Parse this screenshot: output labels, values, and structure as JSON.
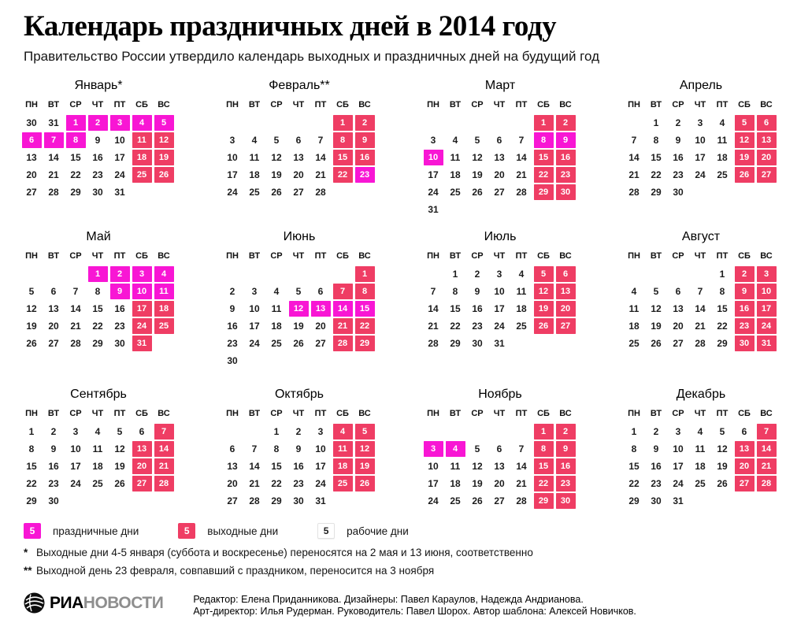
{
  "header": {
    "title": "Календарь праздничных дней в 2014 году",
    "subtitle": "Правительство России утвердило календарь выходных и праздничных дней на будущий год"
  },
  "calendar": {
    "year": "2014",
    "day_headers": [
      "ПН",
      "ВТ",
      "СР",
      "ЧТ",
      "ПТ",
      "СБ",
      "ВС"
    ],
    "cell_type_codes": {
      "H": "holiday",
      "W": "weekend"
    },
    "months": [
      {
        "id": "january",
        "name": "Январь*",
        "weeks": [
          [
            "30",
            "31",
            "1H",
            "2H",
            "3H",
            "4H",
            "5H"
          ],
          [
            "6H",
            "7H",
            "8H",
            "9",
            "10",
            "11W",
            "12W"
          ],
          [
            "13",
            "14",
            "15",
            "16",
            "17",
            "18W",
            "19W"
          ],
          [
            "20",
            "21",
            "22",
            "23",
            "24",
            "25W",
            "26W"
          ],
          [
            "27",
            "28",
            "29",
            "30",
            "31",
            "",
            ""
          ]
        ]
      },
      {
        "id": "february",
        "name": "Февраль**",
        "weeks": [
          [
            "",
            "",
            "",
            "",
            "",
            "1W",
            "2W"
          ],
          [
            "3",
            "4",
            "5",
            "6",
            "7",
            "8W",
            "9W"
          ],
          [
            "10",
            "11",
            "12",
            "13",
            "14",
            "15W",
            "16W"
          ],
          [
            "17",
            "18",
            "19",
            "20",
            "21",
            "22W",
            "23H"
          ],
          [
            "24",
            "25",
            "26",
            "27",
            "28",
            "",
            ""
          ]
        ]
      },
      {
        "id": "march",
        "name": "Март",
        "weeks": [
          [
            "",
            "",
            "",
            "",
            "",
            "1W",
            "2W"
          ],
          [
            "3",
            "4",
            "5",
            "6",
            "7",
            "8H",
            "9H"
          ],
          [
            "10H",
            "11",
            "12",
            "13",
            "14",
            "15W",
            "16W"
          ],
          [
            "17",
            "18",
            "19",
            "20",
            "21",
            "22W",
            "23W"
          ],
          [
            "24",
            "25",
            "26",
            "27",
            "28",
            "29W",
            "30W"
          ],
          [
            "31",
            "",
            "",
            "",
            "",
            "",
            ""
          ]
        ]
      },
      {
        "id": "april",
        "name": "Апрель",
        "weeks": [
          [
            "",
            "1",
            "2",
            "3",
            "4",
            "5W",
            "6W"
          ],
          [
            "7",
            "8",
            "9",
            "10",
            "11",
            "12W",
            "13W"
          ],
          [
            "14",
            "15",
            "16",
            "17",
            "18",
            "19W",
            "20W"
          ],
          [
            "21",
            "22",
            "23",
            "24",
            "25",
            "26W",
            "27W"
          ],
          [
            "28",
            "29",
            "30",
            "",
            "",
            "",
            ""
          ]
        ]
      },
      {
        "id": "may",
        "name": "Май",
        "weeks": [
          [
            "",
            "",
            "",
            "1H",
            "2H",
            "3H",
            "4H"
          ],
          [
            "5",
            "6",
            "7",
            "8",
            "9H",
            "10H",
            "11H"
          ],
          [
            "12",
            "13",
            "14",
            "15",
            "16",
            "17W",
            "18W"
          ],
          [
            "19",
            "20",
            "21",
            "22",
            "23",
            "24W",
            "25W"
          ],
          [
            "26",
            "27",
            "28",
            "29",
            "30",
            "31W",
            ""
          ]
        ]
      },
      {
        "id": "june",
        "name": "Июнь",
        "weeks": [
          [
            "",
            "",
            "",
            "",
            "",
            "",
            "1W"
          ],
          [
            "2",
            "3",
            "4",
            "5",
            "6",
            "7W",
            "8W"
          ],
          [
            "9",
            "10",
            "11",
            "12H",
            "13H",
            "14H",
            "15H"
          ],
          [
            "16",
            "17",
            "18",
            "19",
            "20",
            "21W",
            "22W"
          ],
          [
            "23",
            "24",
            "25",
            "26",
            "27",
            "28W",
            "29W"
          ],
          [
            "30",
            "",
            "",
            "",
            "",
            "",
            ""
          ]
        ]
      },
      {
        "id": "july",
        "name": "Июль",
        "weeks": [
          [
            "",
            "1",
            "2",
            "3",
            "4",
            "5W",
            "6W"
          ],
          [
            "7",
            "8",
            "9",
            "10",
            "11",
            "12W",
            "13W"
          ],
          [
            "14",
            "15",
            "16",
            "17",
            "18",
            "19W",
            "20W"
          ],
          [
            "21",
            "22",
            "23",
            "24",
            "25",
            "26W",
            "27W"
          ],
          [
            "28",
            "29",
            "30",
            "31",
            "",
            "",
            ""
          ]
        ]
      },
      {
        "id": "august",
        "name": "Август",
        "weeks": [
          [
            "",
            "",
            "",
            "",
            "1",
            "2W",
            "3W"
          ],
          [
            "4",
            "5",
            "6",
            "7",
            "8",
            "9W",
            "10W"
          ],
          [
            "11",
            "12",
            "13",
            "14",
            "15",
            "16W",
            "17W"
          ],
          [
            "18",
            "19",
            "20",
            "21",
            "22",
            "23W",
            "24W"
          ],
          [
            "25",
            "26",
            "27",
            "28",
            "29",
            "30W",
            "31W"
          ]
        ]
      },
      {
        "id": "september",
        "name": "Сентябрь",
        "weeks": [
          [
            "1",
            "2",
            "3",
            "4",
            "5",
            "6",
            "7W"
          ],
          [
            "8",
            "9",
            "10",
            "11",
            "12",
            "13W",
            "14W"
          ],
          [
            "15",
            "16",
            "17",
            "18",
            "19",
            "20W",
            "21W"
          ],
          [
            "22",
            "23",
            "24",
            "25",
            "26",
            "27W",
            "28W"
          ],
          [
            "29",
            "30",
            "",
            "",
            "",
            "",
            ""
          ]
        ]
      },
      {
        "id": "october",
        "name": "Октябрь",
        "weeks": [
          [
            "",
            "",
            "1",
            "2",
            "3",
            "4W",
            "5W"
          ],
          [
            "6",
            "7",
            "8",
            "9",
            "10",
            "11W",
            "12W"
          ],
          [
            "13",
            "14",
            "15",
            "16",
            "17",
            "18W",
            "19W"
          ],
          [
            "20",
            "21",
            "22",
            "23",
            "24",
            "25W",
            "26W"
          ],
          [
            "27",
            "28",
            "29",
            "30",
            "31",
            "",
            ""
          ]
        ]
      },
      {
        "id": "november",
        "name": "Ноябрь",
        "weeks": [
          [
            "",
            "",
            "",
            "",
            "",
            "1W",
            "2W"
          ],
          [
            "3H",
            "4H",
            "5",
            "6",
            "7",
            "8W",
            "9W"
          ],
          [
            "10",
            "11",
            "12",
            "13",
            "14",
            "15W",
            "16W"
          ],
          [
            "17",
            "18",
            "19",
            "20",
            "21",
            "22W",
            "23W"
          ],
          [
            "24",
            "25",
            "26",
            "27",
            "28",
            "29W",
            "30W"
          ]
        ]
      },
      {
        "id": "december",
        "name": "Декабрь",
        "weeks": [
          [
            "1",
            "2",
            "3",
            "4",
            "5",
            "6",
            "7W"
          ],
          [
            "8",
            "9",
            "10",
            "11",
            "12",
            "13W",
            "14W"
          ],
          [
            "15",
            "16",
            "17",
            "18",
            "19",
            "20W",
            "21W"
          ],
          [
            "22",
            "23",
            "24",
            "25",
            "26",
            "27W",
            "28W"
          ],
          [
            "29",
            "30",
            "31",
            "",
            "",
            "",
            ""
          ]
        ]
      }
    ]
  },
  "legend": {
    "items": [
      {
        "type": "holiday",
        "value": "5",
        "label": "праздничные дни"
      },
      {
        "type": "weekend",
        "value": "5",
        "label": "выходные дни"
      },
      {
        "type": "workday",
        "value": "5",
        "label": "рабочие дни"
      }
    ]
  },
  "footnotes": [
    {
      "marker": "*",
      "text": "Выходные дни 4-5 января (суббота и воскресенье) переносятся на 2 мая и 13 июня, соответственно"
    },
    {
      "marker": "**",
      "text": "Выходной день 23 февраля, совпавший с праздником, переносится на 3 ноября"
    }
  ],
  "footer": {
    "brand_black": "РИА",
    "brand_gray": "НОВОСТИ",
    "credits_line1": "Редактор: Елена Приданникова. Дизайнеры: Павел Караулов, Надежда Андрианова.",
    "credits_line2": "Арт-директор: Илья Рудерман. Руководитель: Павел Шорох. Автор шаблона: Алексей Новичков."
  },
  "colors": {
    "holiday": "#f816d4",
    "weekend": "#ef3d64",
    "text": "#1a1a1a",
    "logo_gray": "#8e8e8e"
  }
}
